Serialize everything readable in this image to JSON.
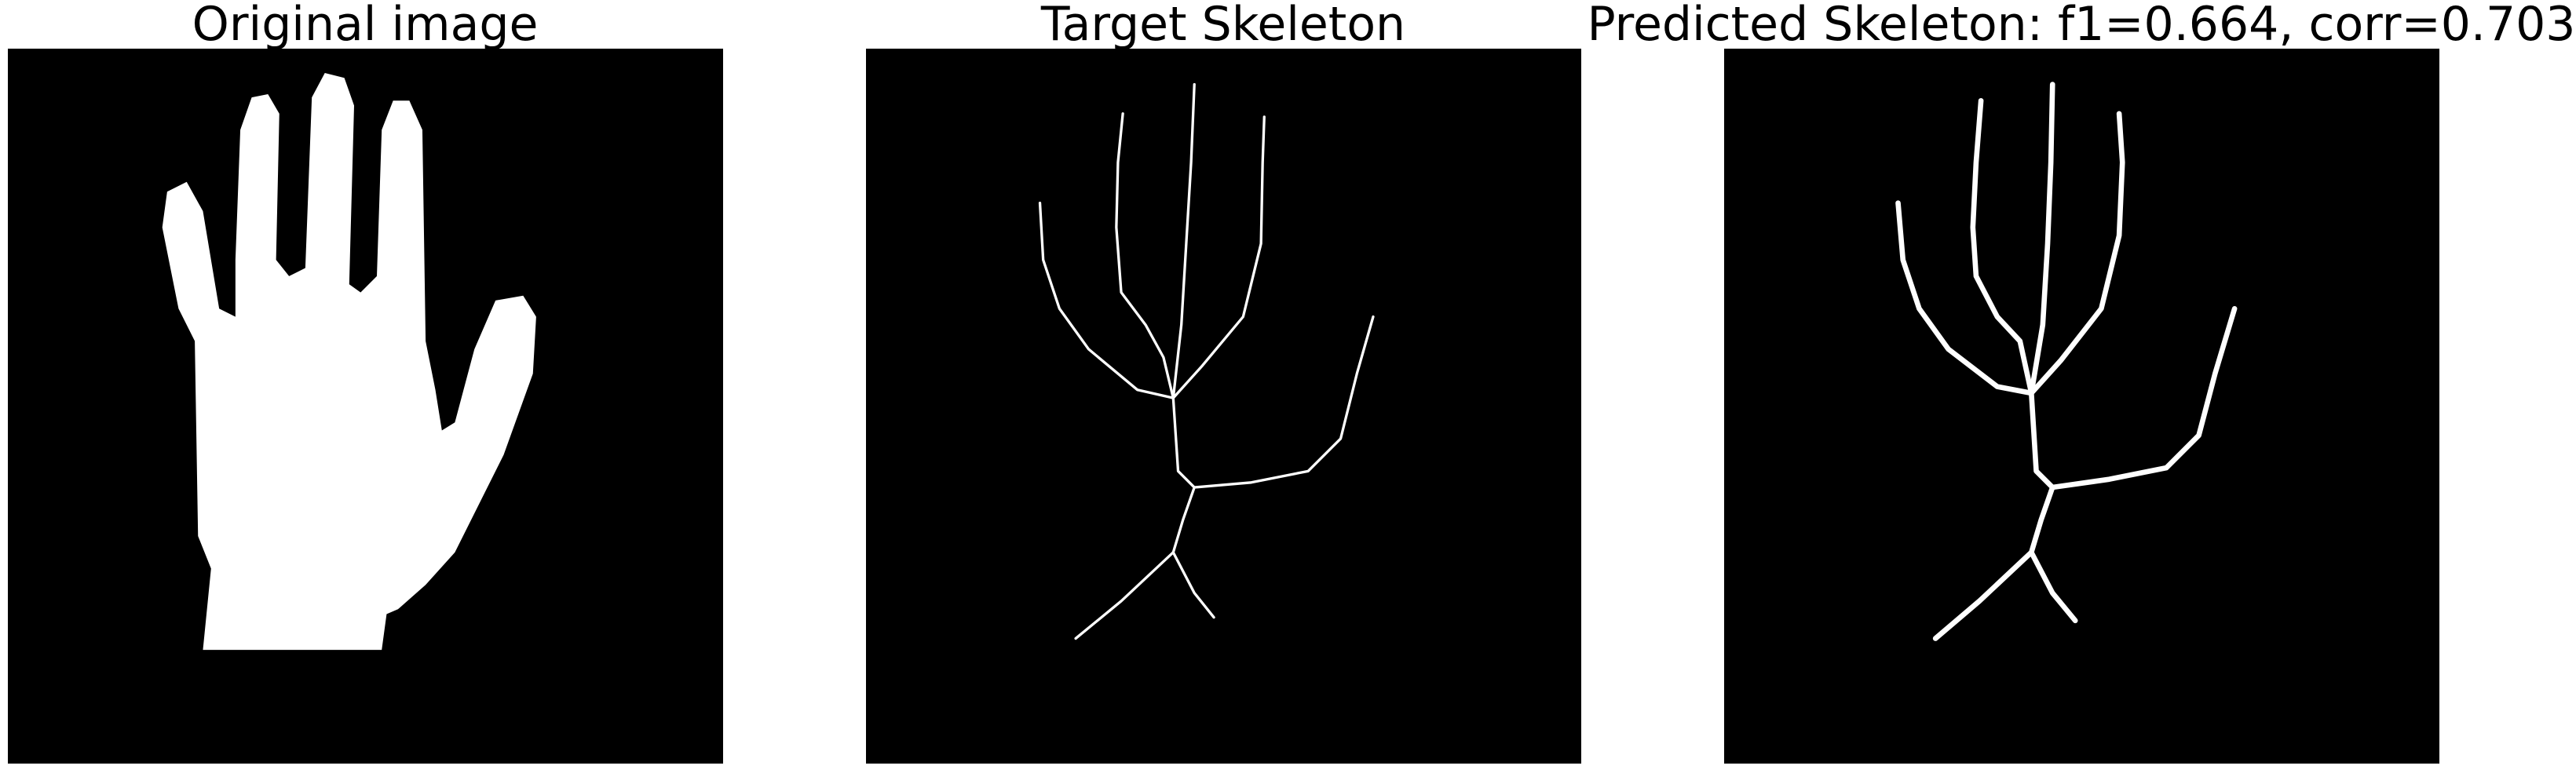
{
  "panels": [
    {
      "title": "Original image"
    },
    {
      "title": "Target Skeleton"
    },
    {
      "title": "Predicted Skeleton: f1=0.664, corr=0.703"
    }
  ]
}
